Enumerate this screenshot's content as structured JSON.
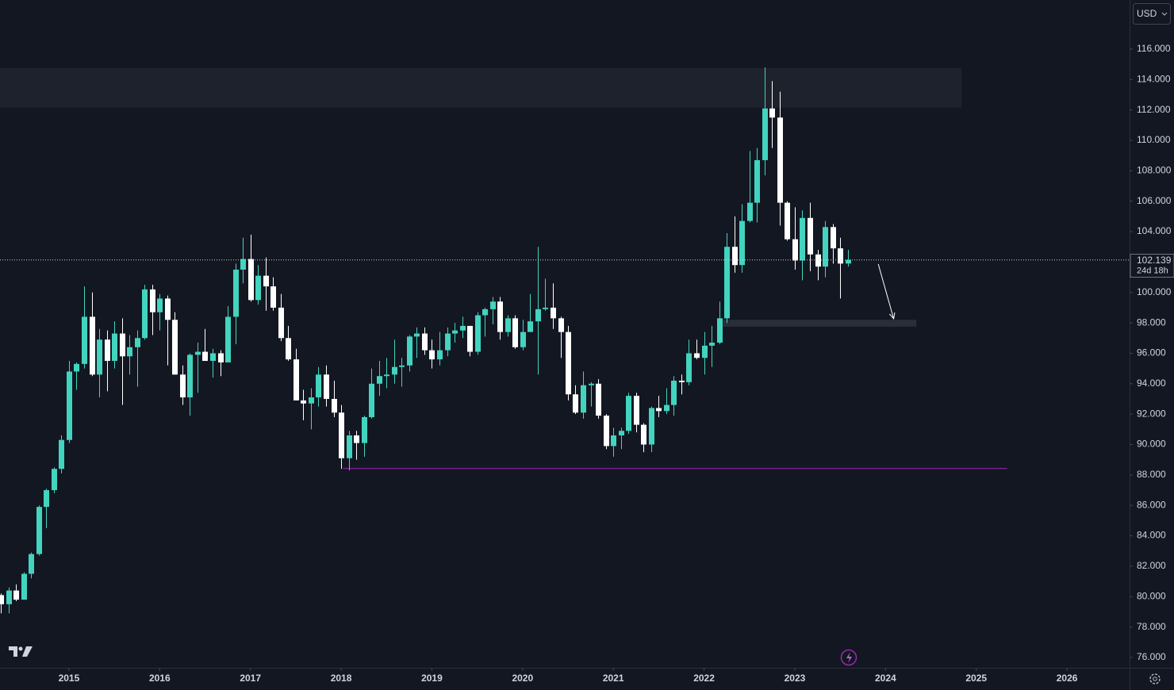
{
  "chart_data": {
    "type": "candlestick",
    "currency": "USD",
    "countdown": "24d 18h",
    "last_price": 102.139,
    "up_color": "#42d4be",
    "down_color": "#ffffff",
    "xlim": [
      2014.24,
      2026.69
    ],
    "xticks": [
      2015,
      2016,
      2017,
      2018,
      2019,
      2020,
      2021,
      2022,
      2023,
      2024,
      2025,
      2026
    ],
    "ylim": [
      75.32,
      119.23
    ],
    "yticks": [
      {
        "value": 76,
        "label": "76.000"
      },
      {
        "value": 78,
        "label": "78.000"
      },
      {
        "value": 80,
        "label": "80.000"
      },
      {
        "value": 82,
        "label": "82.000"
      },
      {
        "value": 84,
        "label": "84.000"
      },
      {
        "value": 86,
        "label": "86.000"
      },
      {
        "value": 88,
        "label": "88.000"
      },
      {
        "value": 90,
        "label": "90.000"
      },
      {
        "value": 92,
        "label": "92.000"
      },
      {
        "value": 94,
        "label": "94.000"
      },
      {
        "value": 96,
        "label": "96.000"
      },
      {
        "value": 98,
        "label": "98.000"
      },
      {
        "value": 100,
        "label": "100.000"
      },
      {
        "value": 104,
        "label": "104.000"
      },
      {
        "value": 106,
        "label": "106.000"
      },
      {
        "value": 108,
        "label": "108.000"
      },
      {
        "value": 110,
        "label": "110.000"
      },
      {
        "value": 112,
        "label": "112.000"
      },
      {
        "value": 114,
        "label": "114.000"
      },
      {
        "value": 116,
        "label": "116.000"
      }
    ],
    "x": [
      2014.25,
      2014.333,
      2014.417,
      2014.5,
      2014.583,
      2014.667,
      2014.75,
      2014.833,
      2014.917,
      2015,
      2015.083,
      2015.167,
      2015.25,
      2015.333,
      2015.417,
      2015.5,
      2015.583,
      2015.667,
      2015.75,
      2015.833,
      2015.917,
      2016,
      2016.083,
      2016.167,
      2016.25,
      2016.333,
      2016.417,
      2016.5,
      2016.583,
      2016.667,
      2016.75,
      2016.833,
      2016.917,
      2017,
      2017.083,
      2017.167,
      2017.25,
      2017.333,
      2017.417,
      2017.5,
      2017.583,
      2017.667,
      2017.75,
      2017.833,
      2017.917,
      2018,
      2018.083,
      2018.167,
      2018.25,
      2018.333,
      2018.417,
      2018.5,
      2018.583,
      2018.667,
      2018.75,
      2018.833,
      2018.917,
      2019,
      2019.083,
      2019.167,
      2019.25,
      2019.333,
      2019.417,
      2019.5,
      2019.583,
      2019.667,
      2019.75,
      2019.833,
      2019.917,
      2020,
      2020.083,
      2020.167,
      2020.25,
      2020.333,
      2020.417,
      2020.5,
      2020.583,
      2020.667,
      2020.75,
      2020.833,
      2020.917,
      2021,
      2021.083,
      2021.167,
      2021.25,
      2021.333,
      2021.417,
      2021.5,
      2021.583,
      2021.667,
      2021.75,
      2021.833,
      2021.917,
      2022,
      2022.083,
      2022.167,
      2022.25,
      2022.333,
      2022.417,
      2022.5,
      2022.583,
      2022.667,
      2022.75,
      2022.833,
      2022.917,
      2023,
      2023.083,
      2023.167,
      2023.25,
      2023.333,
      2023.417,
      2023.5,
      2023.583
    ],
    "open": [
      80.1,
      79.5,
      80.4,
      79.8,
      81.5,
      82.8,
      85.9,
      87.0,
      88.4,
      90.3,
      94.8,
      95.3,
      98.4,
      94.6,
      96.9,
      95.5,
      97.3,
      95.8,
      96.4,
      97.0,
      100.2,
      98.7,
      99.6,
      98.2,
      94.6,
      93.1,
      95.9,
      96.1,
      95.5,
      96.0,
      95.4,
      98.4,
      101.5,
      102.2,
      99.5,
      101.1,
      100.4,
      99.0,
      97.0,
      95.6,
      92.9,
      92.7,
      93.1,
      94.6,
      93.0,
      92.1,
      89.1,
      90.6,
      90.1,
      91.8,
      94.0,
      94.5,
      94.6,
      95.1,
      95.2,
      97.1,
      97.3,
      96.2,
      95.6,
      96.2,
      97.3,
      97.5,
      97.8,
      96.1,
      98.5,
      98.9,
      99.4,
      97.4,
      98.3,
      96.4,
      97.4,
      98.1,
      98.9,
      99.0,
      98.3,
      97.4,
      93.3,
      92.1,
      93.9,
      94.0,
      91.9,
      89.9,
      90.6,
      90.9,
      93.2,
      91.3,
      90.0,
      92.4,
      92.2,
      92.6,
      94.2,
      94.1,
      96.0,
      95.7,
      96.5,
      96.7,
      98.3,
      103.0,
      101.8,
      104.7,
      105.9,
      108.7,
      112.1,
      111.5,
      105.9,
      103.5,
      102.1,
      104.9,
      102.5,
      101.7,
      104.3,
      102.9,
      101.9
    ],
    "high": [
      80.2,
      80.6,
      80.8,
      81.6,
      82.9,
      86.0,
      87.1,
      88.5,
      90.6,
      95.5,
      95.4,
      100.4,
      100.0,
      97.6,
      97.5,
      98.1,
      98.3,
      97.2,
      97.5,
      100.5,
      100.5,
      99.9,
      99.8,
      98.7,
      95.2,
      96.0,
      96.7,
      97.6,
      96.3,
      96.2,
      99.1,
      101.9,
      103.6,
      103.8,
      101.8,
      102.3,
      101.0,
      99.9,
      97.8,
      96.3,
      93.6,
      93.7,
      95.1,
      95.2,
      94.2,
      92.6,
      90.9,
      90.9,
      91.9,
      95.0,
      95.5,
      95.7,
      96.9,
      95.7,
      97.2,
      97.7,
      97.7,
      96.9,
      97.4,
      97.7,
      98.0,
      98.4,
      97.8,
      98.7,
      99.0,
      99.7,
      99.7,
      98.5,
      98.5,
      98.2,
      99.9,
      103.0,
      100.9,
      100.6,
      98.4,
      97.8,
      93.9,
      94.8,
      94.1,
      94.3,
      92.0,
      91.1,
      91.1,
      93.4,
      93.4,
      91.4,
      92.5,
      93.2,
      93.7,
      94.5,
      94.6,
      96.9,
      96.9,
      97.4,
      97.8,
      99.4,
      103.9,
      105.0,
      105.8,
      109.3,
      109.5,
      114.8,
      113.9,
      113.2,
      106.0,
      105.6,
      105.4,
      105.9,
      102.8,
      104.7,
      104.5,
      103.6,
      102.8
    ],
    "low": [
      78.9,
      78.9,
      79.7,
      79.8,
      81.2,
      82.7,
      84.5,
      86.8,
      88.1,
      90.1,
      93.6,
      95.0,
      94.5,
      93.1,
      93.5,
      95.0,
      92.6,
      94.6,
      93.8,
      96.9,
      97.2,
      97.5,
      95.2,
      94.6,
      92.6,
      91.9,
      93.4,
      95.5,
      94.4,
      94.5,
      95.4,
      96.6,
      100.6,
      99.4,
      99.2,
      98.8,
      98.8,
      96.8,
      95.5,
      92.9,
      91.6,
      91.0,
      92.5,
      92.5,
      91.8,
      88.4,
      88.3,
      89.0,
      89.2,
      91.7,
      93.2,
      93.7,
      94.0,
      93.8,
      94.8,
      95.7,
      95.9,
      95.0,
      95.2,
      95.8,
      96.7,
      97.0,
      95.8,
      95.9,
      97.1,
      97.9,
      96.9,
      97.1,
      96.3,
      96.2,
      97.4,
      94.6,
      98.8,
      97.6,
      95.7,
      92.9,
      92.0,
      91.7,
      92.5,
      91.7,
      89.7,
      89.2,
      89.7,
      90.7,
      90.8,
      89.5,
      89.5,
      91.8,
      92.0,
      91.9,
      93.3,
      93.9,
      95.6,
      94.6,
      95.1,
      96.6,
      98.0,
      101.3,
      101.3,
      104.6,
      104.6,
      107.7,
      109.5,
      104.4,
      103.4,
      101.5,
      100.8,
      101.4,
      100.8,
      101.0,
      101.9,
      99.6,
      101.7
    ],
    "close": [
      79.5,
      80.4,
      79.8,
      81.5,
      82.8,
      85.9,
      87.0,
      88.4,
      90.3,
      94.8,
      95.3,
      98.4,
      94.6,
      96.9,
      95.5,
      97.3,
      95.8,
      96.4,
      97.0,
      100.2,
      98.7,
      99.6,
      98.2,
      94.6,
      93.1,
      95.9,
      96.1,
      95.5,
      96.0,
      95.4,
      98.4,
      101.5,
      102.2,
      99.5,
      101.1,
      100.4,
      99.0,
      97.0,
      95.6,
      92.9,
      92.7,
      93.1,
      94.6,
      93.0,
      92.1,
      89.1,
      90.6,
      90.1,
      91.8,
      94.0,
      94.5,
      94.6,
      95.1,
      95.2,
      97.1,
      97.3,
      96.2,
      95.6,
      96.2,
      97.3,
      97.5,
      97.8,
      96.1,
      98.5,
      98.9,
      99.4,
      97.4,
      98.3,
      96.4,
      97.4,
      98.1,
      98.9,
      99.0,
      98.3,
      97.4,
      93.3,
      92.1,
      93.9,
      94.0,
      91.9,
      89.9,
      90.6,
      90.9,
      93.2,
      91.3,
      90.0,
      92.4,
      92.2,
      92.6,
      94.2,
      94.1,
      96.0,
      95.7,
      96.5,
      96.7,
      98.3,
      103.0,
      101.8,
      104.7,
      105.9,
      108.7,
      112.1,
      111.5,
      105.9,
      103.5,
      102.1,
      104.9,
      102.5,
      101.7,
      104.3,
      102.9,
      101.9,
      102.139
    ],
    "drawings": [
      {
        "kind": "rect",
        "x": [
          2014.24,
          2024.84
        ],
        "y": [
          112.15,
          114.75
        ],
        "color": "#1e222d"
      },
      {
        "kind": "rect",
        "x": [
          2022.21,
          2024.34
        ],
        "y": [
          97.75,
          98.2
        ],
        "color": "#2a2e39"
      },
      {
        "kind": "line",
        "x": [
          2018.02,
          2025.34
        ],
        "y": [
          88.42,
          88.42
        ],
        "color": "#9c27b0"
      },
      {
        "kind": "arrow",
        "x": [
          2023.92,
          2024.09
        ],
        "y": [
          101.87,
          98.27
        ],
        "color": "#ffffff"
      }
    ]
  }
}
